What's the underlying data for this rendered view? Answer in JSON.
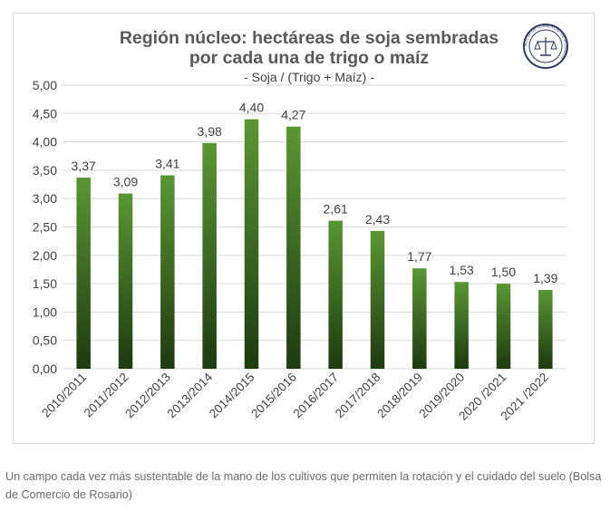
{
  "chart_data": {
    "type": "bar",
    "title": [
      "Región núcleo: hectáreas de soja sembradas",
      "por cada una de trigo o maíz"
    ],
    "subtitle": "- Soja / (Trigo + Maíz) -",
    "categories": [
      "2010/2011",
      "2011/2012",
      "2012/2013",
      "2013/2014",
      "2014/2015",
      "2015/2016",
      "2016/2017",
      "2017/2018",
      "2018/2019",
      "2019/2020",
      "2020 /2021",
      "2021 /2022"
    ],
    "values": [
      3.37,
      3.09,
      3.41,
      3.98,
      4.4,
      4.27,
      2.61,
      2.43,
      1.77,
      1.53,
      1.5,
      1.39
    ],
    "value_labels": [
      "3,37",
      "3,09",
      "3,41",
      "3,98",
      "4,40",
      "4,27",
      "2,61",
      "2,43",
      "1,77",
      "1,53",
      "1,50",
      "1,39"
    ],
    "yticks": [
      "0,00",
      "0,50",
      "1,00",
      "1,50",
      "2,00",
      "2,50",
      "3,00",
      "3,50",
      "4,00",
      "4,50",
      "5,00"
    ],
    "ylim": [
      0,
      5
    ],
    "grid": true,
    "legend": "none",
    "bar_color_top": "#5a9634",
    "bar_color_bottom": "#1e3a10"
  },
  "logo": {
    "icon": "bolsa-de-comercio-seal-icon",
    "text": "BOLSA DE COMERCIO DE ROSARIO"
  },
  "caption": "Un campo cada vez más sustentable de la mano de los cultivos que permiten la rotación y el cuidado del suelo (Bolsa de Comercio de Rosario)"
}
